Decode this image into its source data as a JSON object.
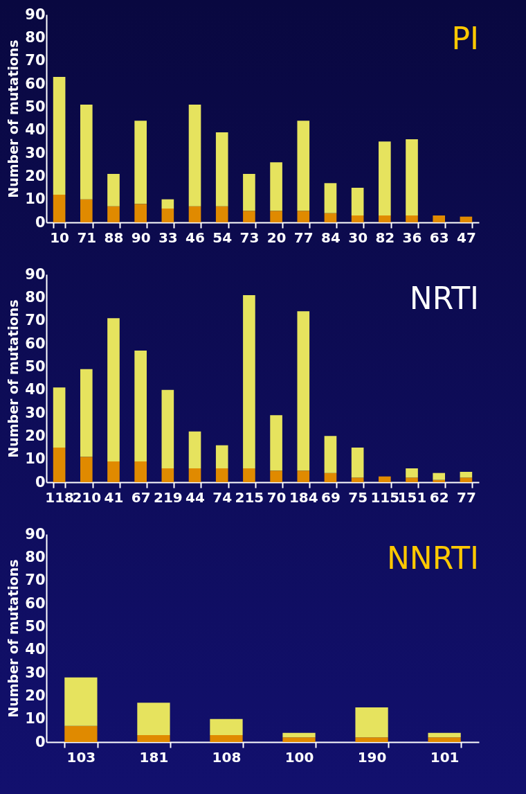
{
  "chart_data": [
    {
      "type": "bar",
      "title": "PI",
      "ylabel": "Number of mutations",
      "stacked": true,
      "categories": [
        "10",
        "71",
        "88",
        "90",
        "33",
        "46",
        "54",
        "73",
        "20",
        "77",
        "84",
        "30",
        "82",
        "36",
        "63",
        "47"
      ],
      "series": [
        {
          "color": "#e08a00",
          "values": [
            12,
            10,
            7,
            8,
            6,
            7,
            7,
            5,
            5,
            5,
            4,
            3,
            3,
            3,
            3,
            2.5
          ]
        },
        {
          "color": "#e6e35e",
          "values": [
            51,
            41,
            14,
            36,
            4,
            44,
            32,
            16,
            21,
            39,
            13,
            12,
            32,
            33,
            0,
            0
          ]
        }
      ],
      "ylim": [
        0,
        90
      ],
      "yticks": [
        0,
        10,
        20,
        30,
        40,
        50,
        60,
        70,
        80,
        90
      ],
      "grid": false,
      "legend": false
    },
    {
      "type": "bar",
      "title": "NRTI",
      "ylabel": "Number of mutations",
      "stacked": true,
      "categories": [
        "118",
        "210",
        "41",
        "67",
        "219",
        "44",
        "74",
        "215",
        "70",
        "184",
        "69",
        "75",
        "115",
        "151",
        "62",
        "77"
      ],
      "series": [
        {
          "color": "#e08a00",
          "values": [
            15,
            11,
            9,
            9,
            6,
            6,
            6,
            6,
            5,
            5,
            4,
            2,
            2.5,
            2,
            1,
            2
          ]
        },
        {
          "color": "#e6e35e",
          "values": [
            26,
            38,
            62,
            48,
            34,
            16,
            10,
            75,
            24,
            69,
            16,
            13,
            0,
            4,
            3,
            2.5
          ]
        }
      ],
      "ylim": [
        0,
        90
      ],
      "yticks": [
        0,
        10,
        20,
        30,
        40,
        50,
        60,
        70,
        80,
        90
      ],
      "grid": false,
      "legend": false
    },
    {
      "type": "bar",
      "title": "NNRTI",
      "ylabel": "Number of mutations",
      "stacked": true,
      "categories": [
        "103",
        "181",
        "108",
        "100",
        "190",
        "101"
      ],
      "series": [
        {
          "color": "#e08a00",
          "values": [
            7,
            3,
            3,
            2,
            2,
            2
          ]
        },
        {
          "color": "#e6e35e",
          "values": [
            21,
            14,
            7,
            2,
            13,
            2
          ]
        }
      ],
      "ylim": [
        0,
        90
      ],
      "yticks": [
        0,
        10,
        20,
        30,
        40,
        50,
        60,
        70,
        80,
        90
      ],
      "grid": false,
      "legend": false
    }
  ]
}
